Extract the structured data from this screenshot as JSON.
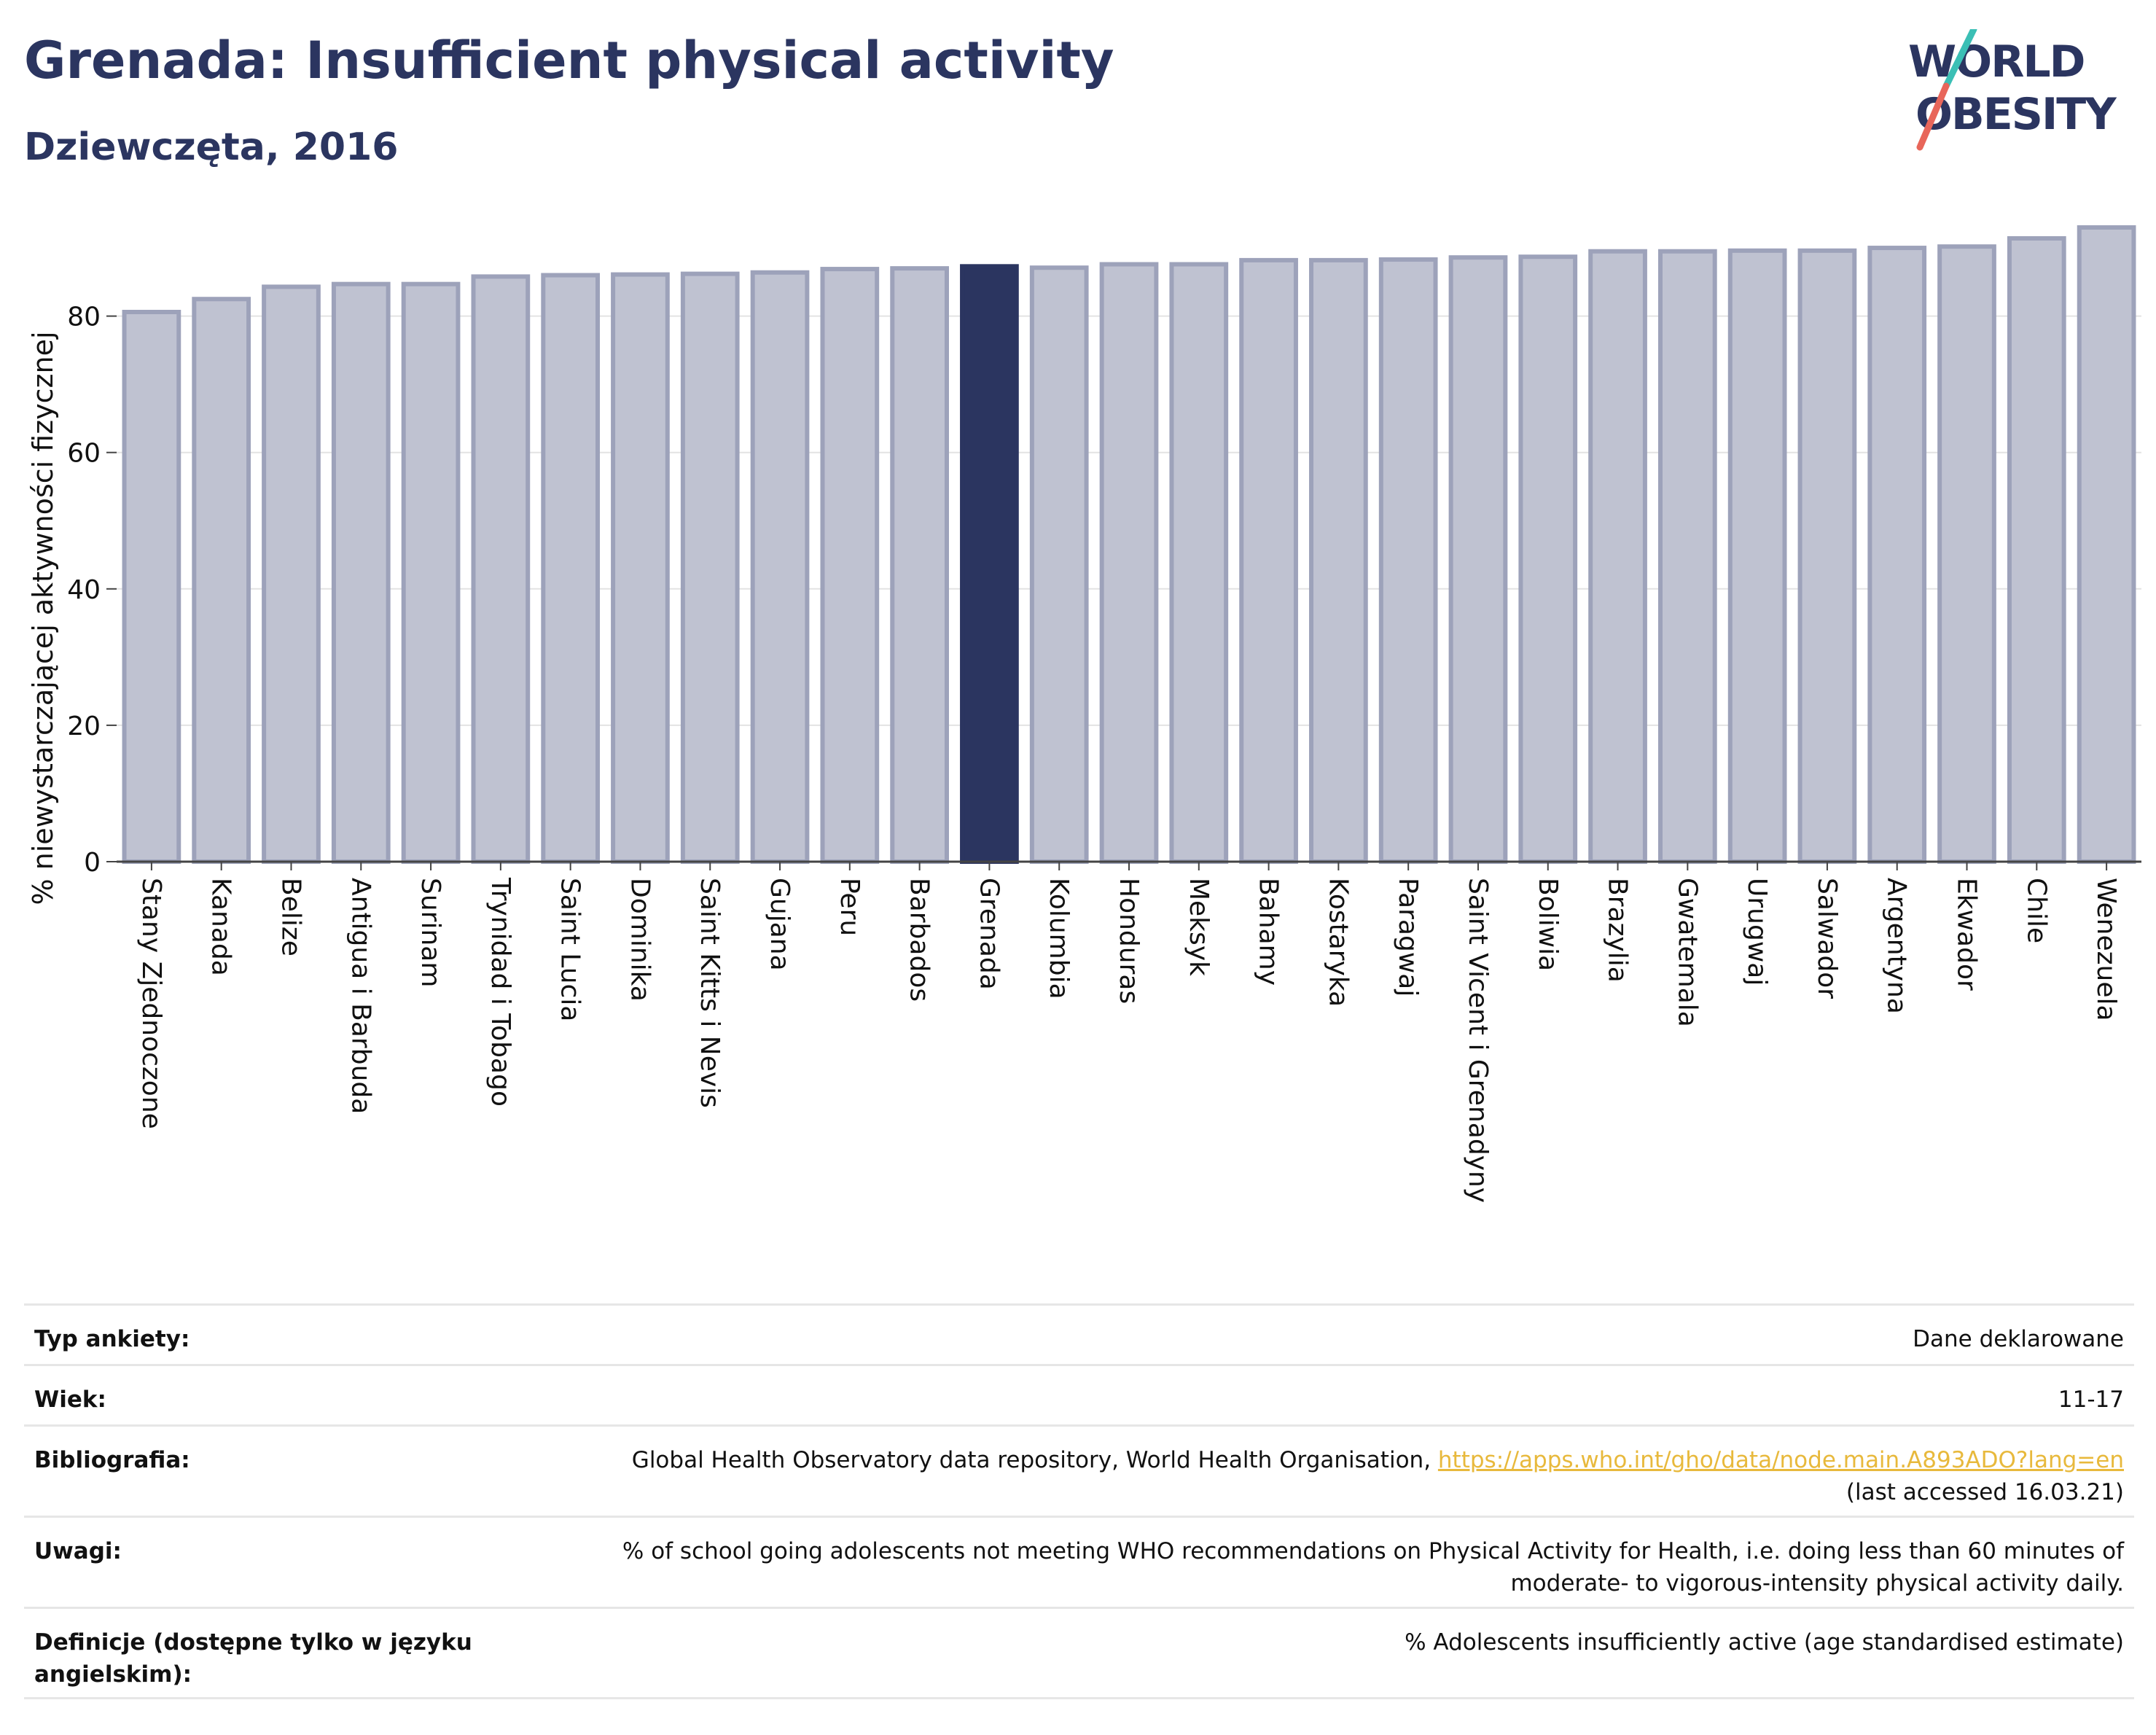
{
  "header": {
    "title": "Grenada: Insufficient physical activity",
    "subtitle": "Dziewczęta, 2016"
  },
  "logo": {
    "line1": "WORLD",
    "line2": "OBESITY"
  },
  "colors": {
    "highlight": "#2b3560",
    "bar_fill": "#bfc2d1",
    "bar_stroke": "#9da2ba",
    "title": "#2b3560",
    "logo_slash_top": "#3bbfb5",
    "logo_slash_bottom": "#e8665a",
    "link": "#e8b93c"
  },
  "chart_data": {
    "type": "bar",
    "ylabel": "% niewystarczającej aktywności fizycznej",
    "ylim": [
      0,
      93
    ],
    "yticks": [
      0,
      20,
      40,
      60,
      80
    ],
    "grid": true,
    "highlight": "Grenada",
    "categories": [
      "Stany Zjednoczone",
      "Kanada",
      "Belize",
      "Antigua i Barbuda",
      "Surinam",
      "Trynidad i Tobago",
      "Saint Lucia",
      "Dominika",
      "Saint Kitts i Nevis",
      "Gujana",
      "Peru",
      "Barbados",
      "Grenada",
      "Kolumbia",
      "Honduras",
      "Meksyk",
      "Bahamy",
      "Kostaryka",
      "Paragwaj",
      "Saint Vicent i Grenadyny",
      "Boliwia",
      "Brazylia",
      "Gwatemala",
      "Urugwaj",
      "Salwador",
      "Argentyna",
      "Ekwador",
      "Chile",
      "Wenezuela"
    ],
    "values": [
      80.6,
      82.5,
      84.3,
      84.7,
      84.7,
      85.8,
      86.0,
      86.1,
      86.2,
      86.4,
      86.9,
      87.0,
      87.3,
      87.1,
      87.6,
      87.6,
      88.2,
      88.2,
      88.3,
      88.6,
      88.7,
      89.5,
      89.5,
      89.6,
      89.6,
      90.0,
      90.2,
      91.4,
      93.0
    ]
  },
  "meta": {
    "survey_label": "Typ ankiety:",
    "survey_value": "Dane deklarowane",
    "age_label": "Wiek:",
    "age_value": "11-17",
    "biblio_label": "Bibliografia:",
    "biblio_text": "Global Health Observatory data repository, World Health Organisation, ",
    "biblio_link": "https://apps.who.int/gho/data/node.main.A893ADO?lang=en",
    "biblio_accessed": "(last accessed 16.03.21)",
    "notes_label": "Uwagi:",
    "notes_value": "% of school going adolescents not meeting WHO recommendations on Physical Activity for Health, i.e. doing less than 60 minutes of moderate- to vigorous-intensity physical activity daily.",
    "def_label": "Definicje (dostępne tylko w języku angielskim):",
    "def_value": "% Adolescents insufficiently active (age standardised estimate)"
  }
}
